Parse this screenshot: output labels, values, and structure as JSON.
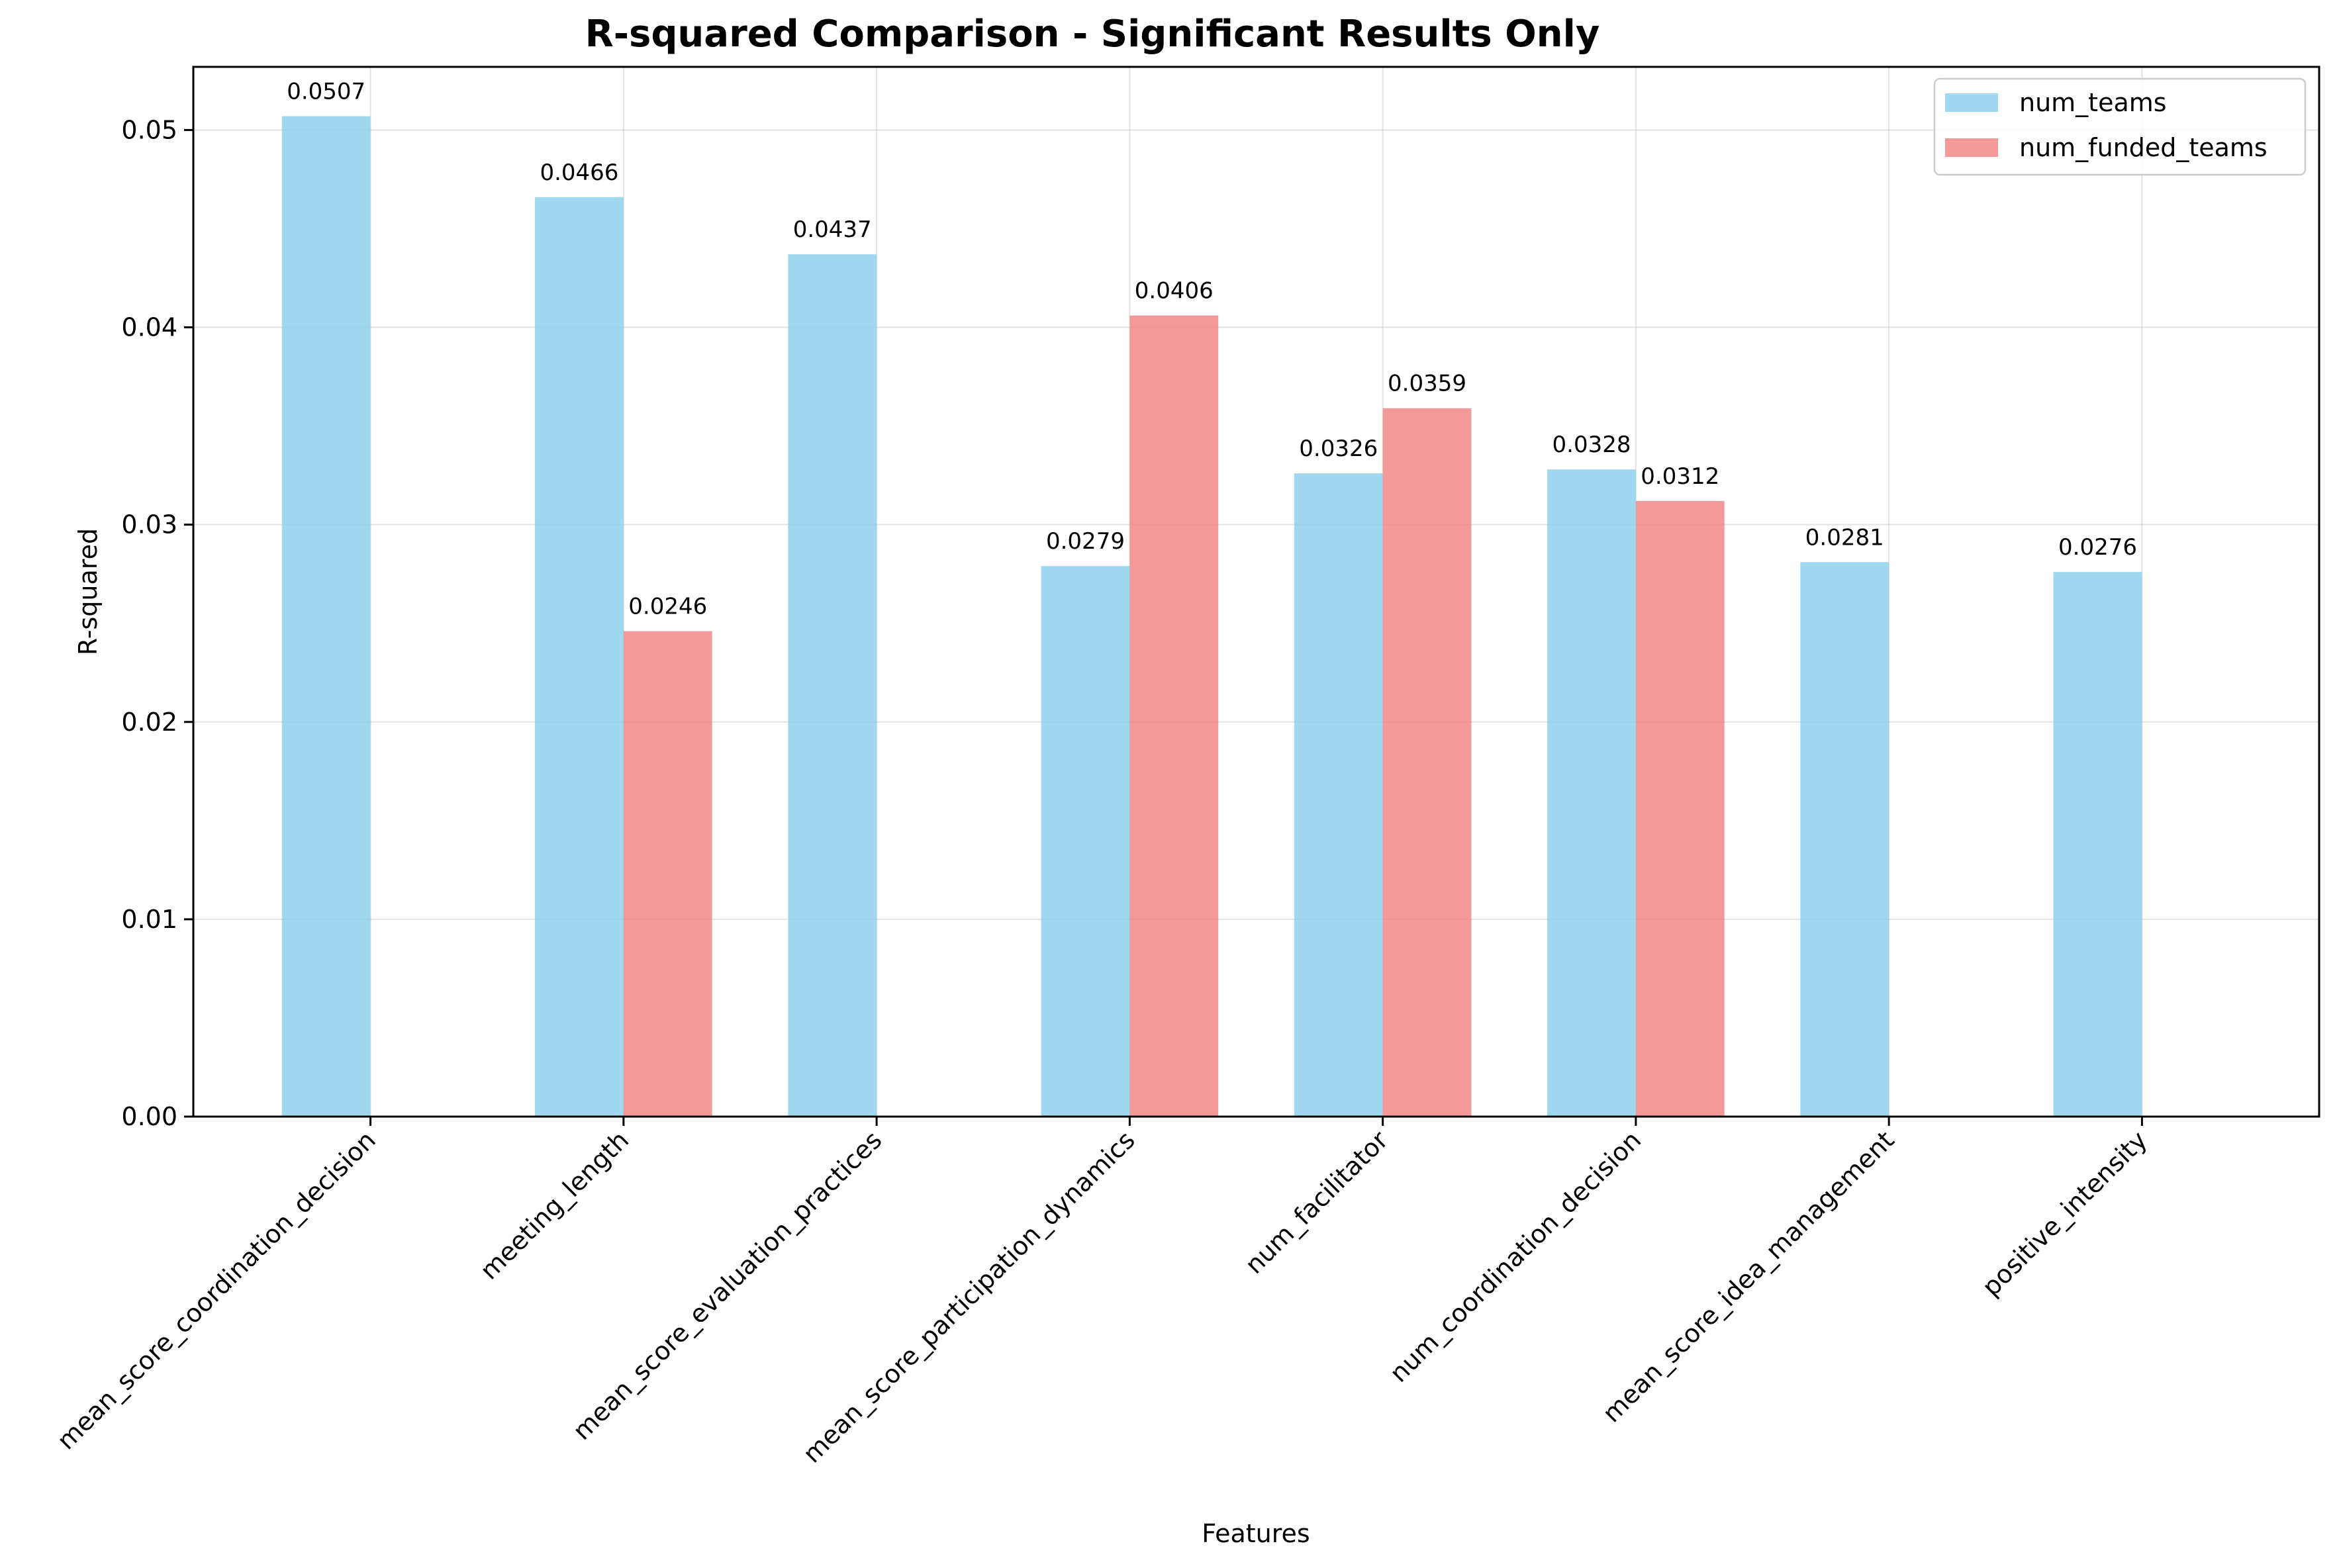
{
  "chart_data": {
    "type": "bar",
    "title": "R-squared Comparison - Significant Results Only",
    "xlabel": "Features",
    "ylabel": "R-squared",
    "ylim": [
      0,
      0.0532
    ],
    "yticks": [
      "0.00",
      "0.01",
      "0.02",
      "0.03",
      "0.04",
      "0.05"
    ],
    "ytick_values": [
      0,
      0.01,
      0.02,
      0.03,
      0.04,
      0.05
    ],
    "grid": true,
    "legend_position": "top-right",
    "categories": [
      "mean_score_coordination_decision",
      "meeting_length",
      "mean_score_evaluation_practices",
      "mean_score_participation_dynamics",
      "num_facilitator",
      "num_coordination_decision",
      "mean_score_idea_management",
      "positive_intensity"
    ],
    "series": [
      {
        "name": "num_teams",
        "color": "#87CEEB",
        "values": [
          0.0507,
          0.0466,
          0.0437,
          0.0279,
          0.0326,
          0.0328,
          0.0281,
          0.0276
        ],
        "labels": [
          "0.0507",
          "0.0466",
          "0.0437",
          "0.0279",
          "0.0326",
          "0.0328",
          "0.0281",
          "0.0276"
        ]
      },
      {
        "name": "num_funded_teams",
        "color": "#F08080",
        "values": [
          null,
          0.0246,
          null,
          0.0406,
          0.0359,
          0.0312,
          null,
          null
        ],
        "labels": [
          null,
          "0.0246",
          null,
          "0.0406",
          "0.0359",
          "0.0312",
          null,
          null
        ]
      }
    ]
  }
}
